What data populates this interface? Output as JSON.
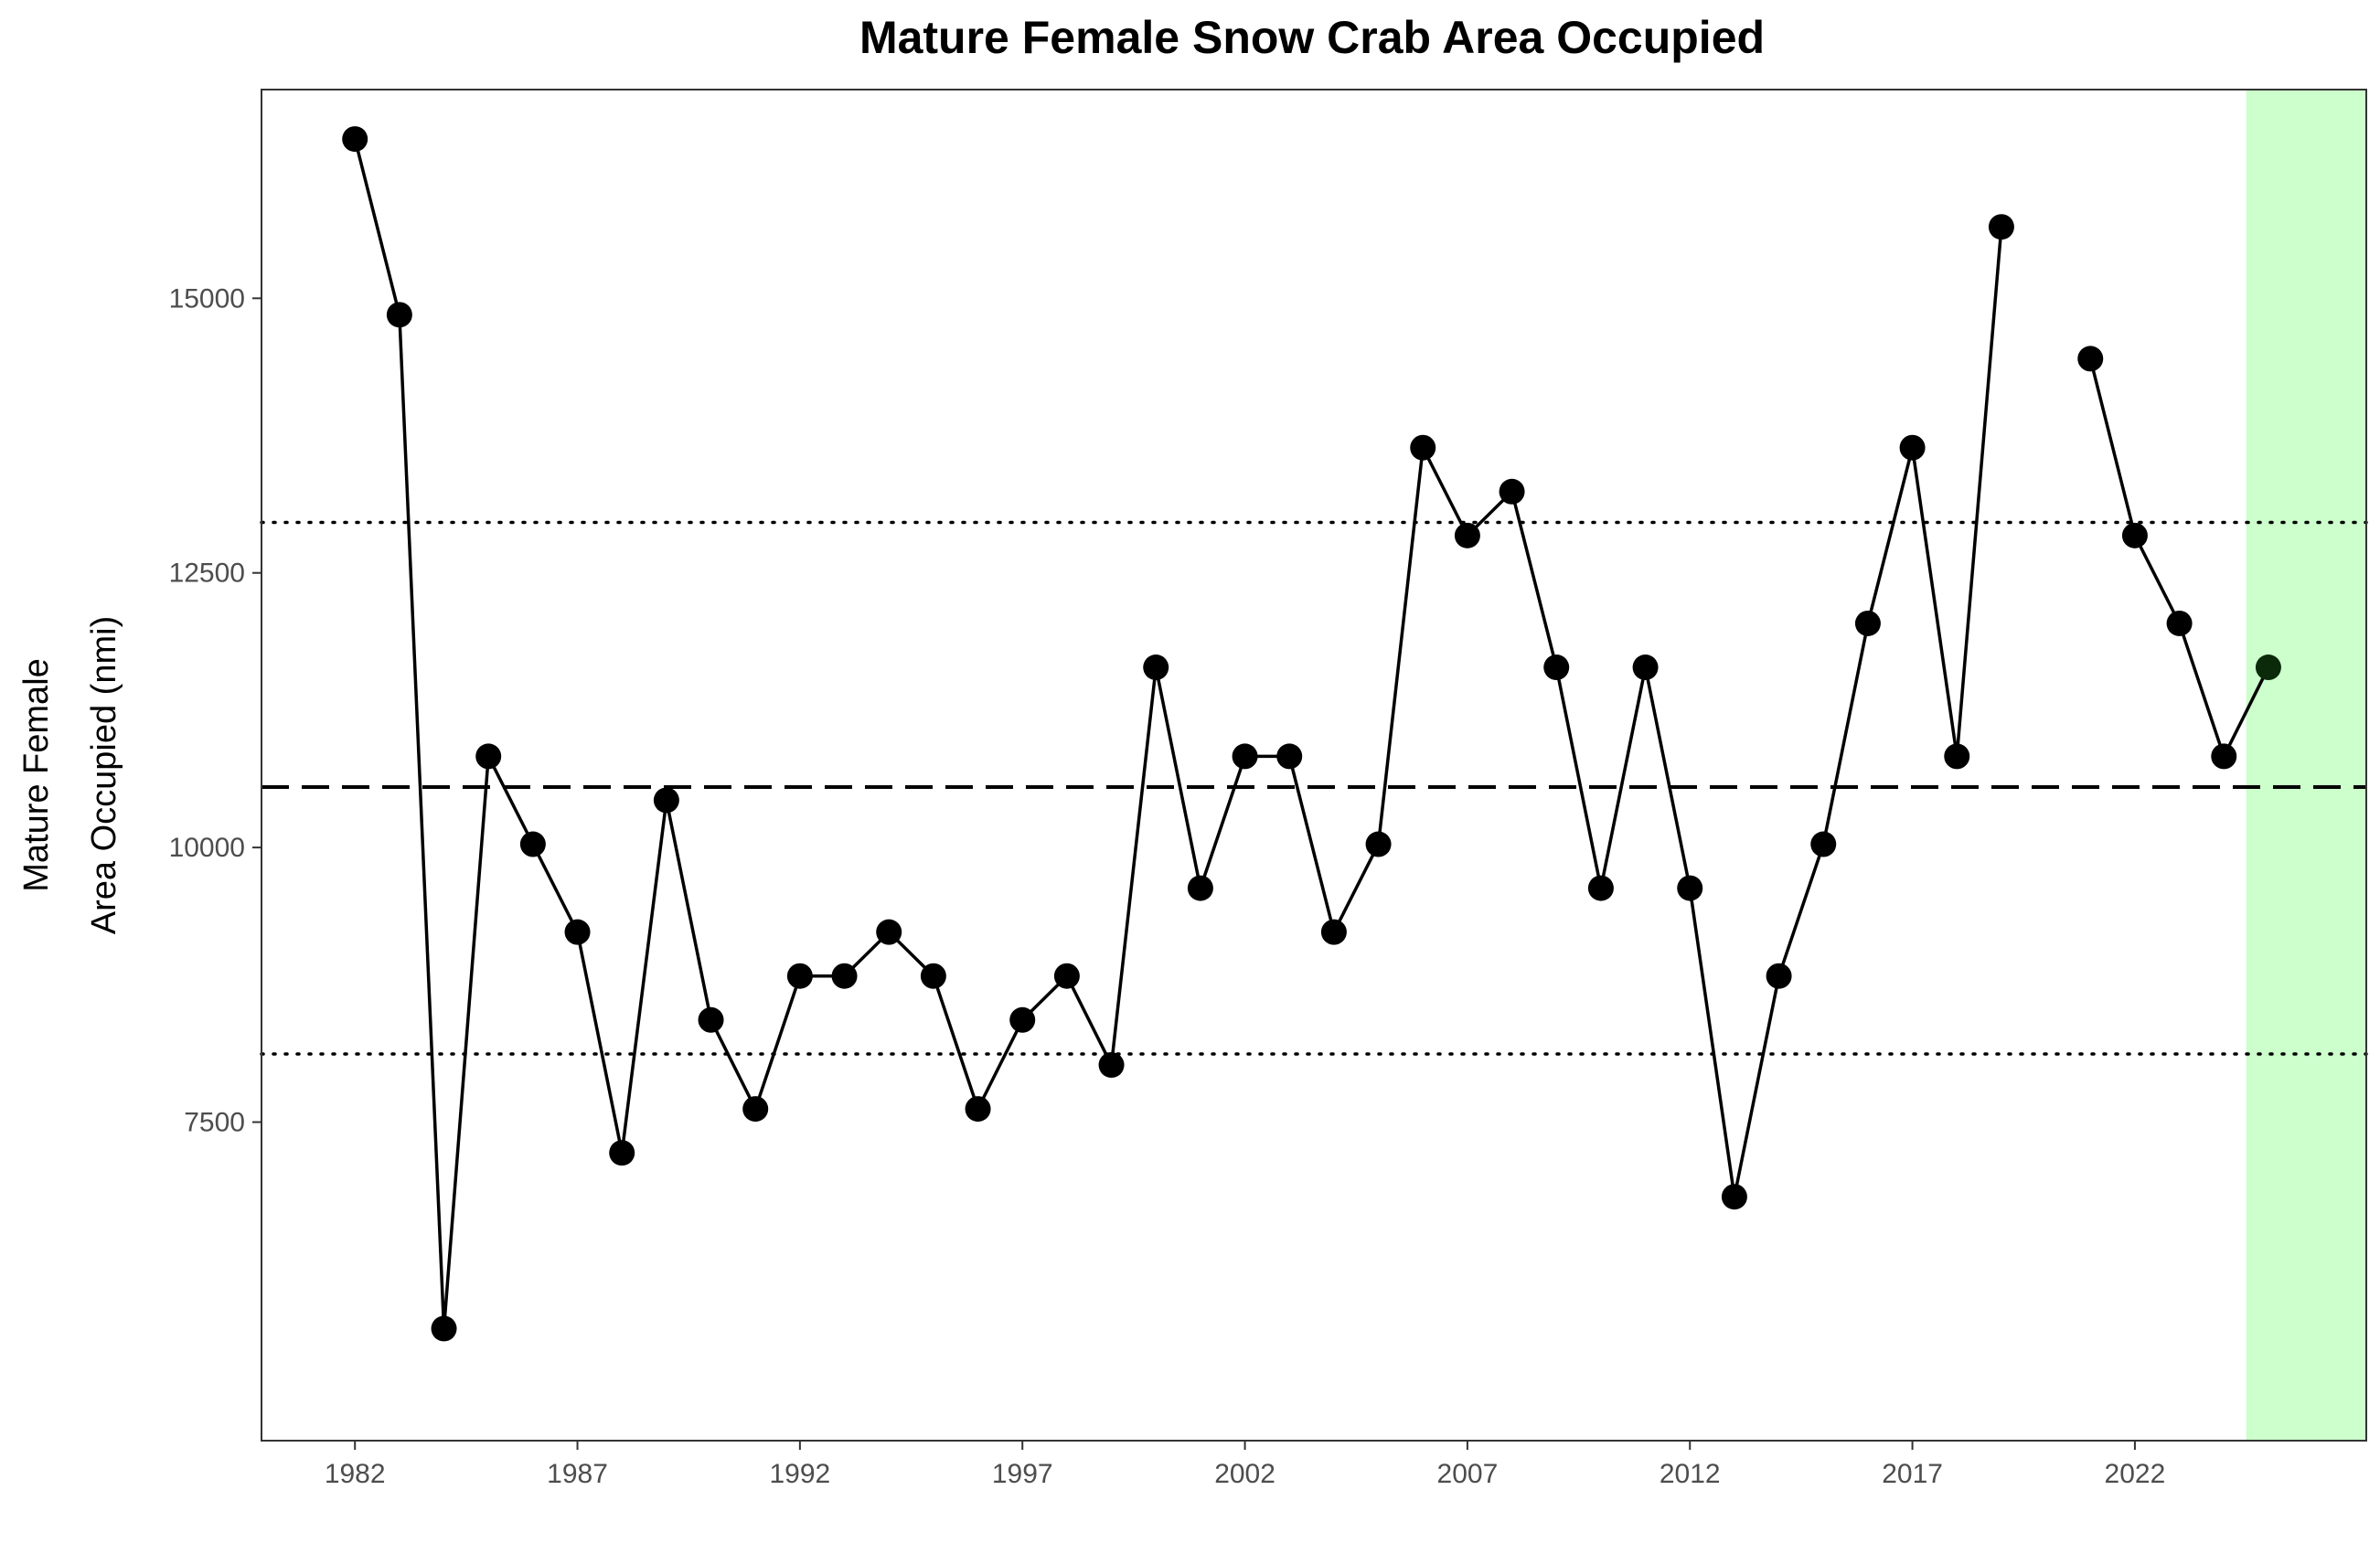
{
  "chart_data": {
    "type": "line",
    "title": "Mature Female Snow Crab Area Occupied",
    "xlabel": "",
    "ylabel_lines": [
      "Mature Female",
      "Area Occupied (nmi)"
    ],
    "xlim": [
      1979.9,
      2027.2
    ],
    "ylim": [
      4600,
      16900
    ],
    "x_ticks": [
      1982,
      1987,
      1992,
      1997,
      2002,
      2007,
      2012,
      2017,
      2022
    ],
    "y_ticks": [
      7500,
      10000,
      12500,
      15000
    ],
    "grid": false,
    "reference_lines": [
      {
        "value": 10550,
        "style": "dashed"
      },
      {
        "value": 12960,
        "style": "dotted"
      },
      {
        "value": 8120,
        "style": "dotted"
      }
    ],
    "highlight_band": {
      "x_start": 2024.5,
      "x_end": 2027.2,
      "color": "#ccffcc"
    },
    "series": [
      {
        "x": [
          1982,
          1983,
          1984,
          1985,
          1986,
          1987,
          1988,
          1989,
          1990,
          1991,
          1992,
          1993,
          1994,
          1995,
          1996,
          1997,
          1998,
          1999,
          2000,
          2001,
          2002,
          2003,
          2004,
          2005,
          2006,
          2007,
          2008,
          2009,
          2010,
          2011,
          2012,
          2013,
          2014,
          2015,
          2016,
          2017,
          2018,
          2019,
          2020,
          2021,
          2022,
          2023,
          2024,
          2025
        ],
        "values": [
          16450,
          14850,
          5620,
          10830,
          10030,
          9230,
          7220,
          10430,
          8430,
          7620,
          8830,
          8830,
          9230,
          8830,
          7620,
          8430,
          8830,
          8020,
          11640,
          9630,
          10830,
          10830,
          9230,
          10030,
          13640,
          12840,
          13240,
          11640,
          9630,
          11640,
          9630,
          6820,
          8830,
          10030,
          12040,
          13640,
          10830,
          15650,
          null,
          14450,
          12840,
          12040,
          10830,
          11640
        ]
      }
    ],
    "colors": {
      "line": "#000000",
      "point": "#000000",
      "highlight_point": "#0a2a0a",
      "band": "#ccffcc",
      "tick_text": "#4d4d4d"
    }
  }
}
